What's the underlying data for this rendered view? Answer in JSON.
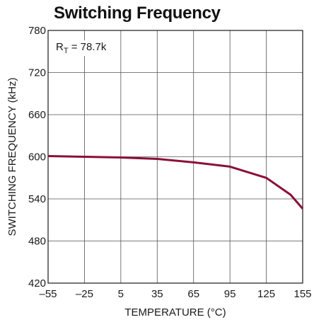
{
  "chart_data": {
    "type": "line",
    "title": "Switching Frequency",
    "xlabel": "TEMPERATURE (°C)",
    "ylabel": "SWITCHING FREQUENCY (kHz)",
    "xlim": [
      -55,
      155
    ],
    "ylim": [
      420,
      780
    ],
    "x_ticks": [
      -55,
      -25,
      5,
      35,
      65,
      95,
      125,
      155
    ],
    "x_tick_labels": [
      "–55",
      "–25",
      "5",
      "35",
      "65",
      "95",
      "125",
      "155"
    ],
    "y_ticks": [
      420,
      480,
      540,
      600,
      660,
      720,
      780
    ],
    "y_tick_labels": [
      "420",
      "480",
      "540",
      "600",
      "660",
      "720",
      "780"
    ],
    "grid": true,
    "legend": "none",
    "annotation": {
      "symbol": "R",
      "subscript": "T",
      "value_text": " = 78.7k"
    },
    "series": [
      {
        "color": "#8b0f3a",
        "x": [
          -55,
          -25,
          5,
          35,
          65,
          95,
          125,
          145,
          155
        ],
        "y": [
          601,
          600,
          599,
          597,
          592,
          586,
          570,
          546,
          526
        ]
      }
    ]
  }
}
